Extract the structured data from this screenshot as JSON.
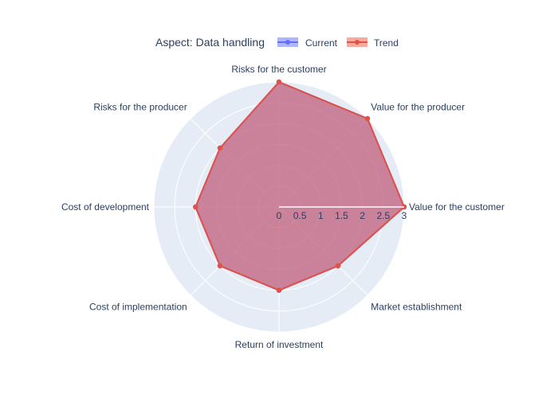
{
  "chart_data": {
    "type": "radar",
    "title": "Aspect: Data handling",
    "axes": [
      "Value for the customer",
      "Value for the producer",
      "Risks for the customer",
      "Risks for the producer",
      "Cost of development",
      "Cost of implementation",
      "Return of investment",
      "Market establishment"
    ],
    "radial_range": [
      0,
      3
    ],
    "radial_ticks": [
      "0",
      "0.5",
      "1",
      "1.5",
      "2",
      "2.5",
      "3"
    ],
    "series": [
      {
        "name": "Current",
        "values": [
          3,
          3,
          3,
          2,
          2,
          2,
          2,
          2
        ],
        "line_color": "#636efa",
        "fill_color": "rgba(99,110,250,0.5)"
      },
      {
        "name": "Trend",
        "values": [
          3,
          3,
          3,
          2,
          2,
          2,
          2,
          2
        ],
        "line_color": "#e05248",
        "fill_color": "rgba(239,85,59,0.5)"
      }
    ],
    "legend_position": "top",
    "grid": true,
    "background_color": "#e5ecf6"
  }
}
